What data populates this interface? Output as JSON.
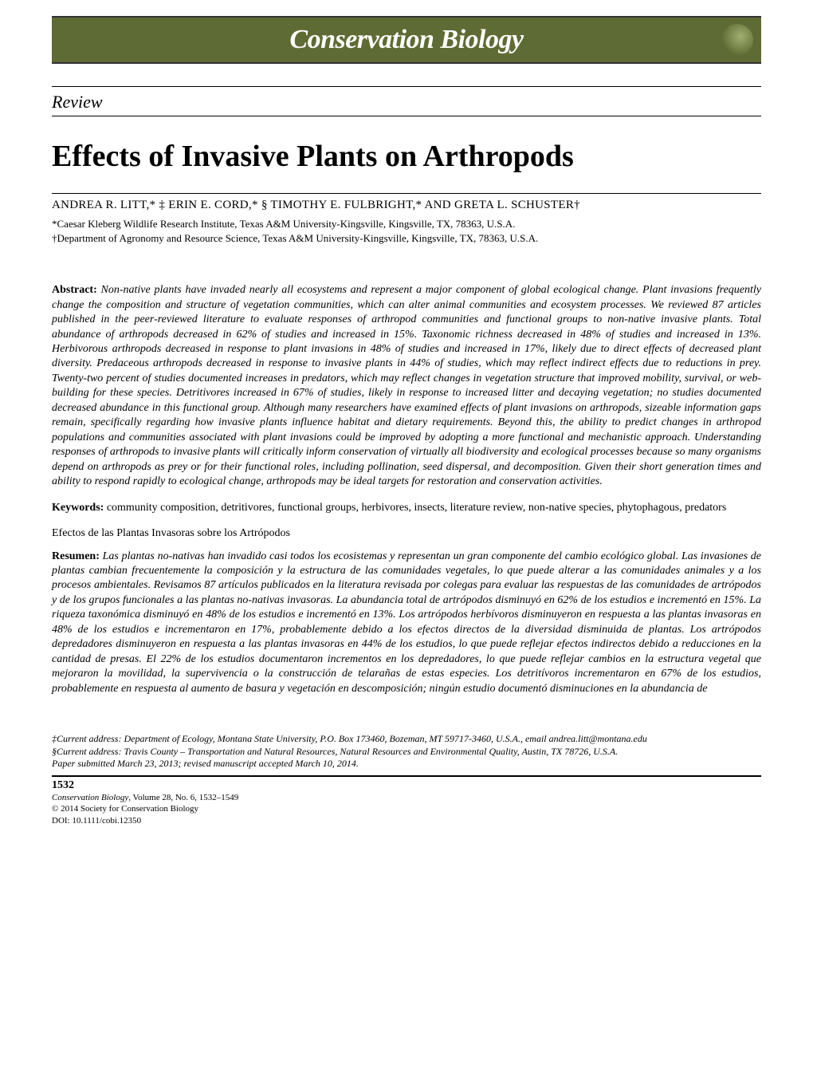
{
  "header": {
    "journal": "Conservation Biology",
    "band_color": "#5f6b34"
  },
  "article": {
    "section_type": "Review",
    "title": "Effects of Invasive Plants on Arthropods",
    "authors_line": "ANDREA R. LITT,* ‡ ERIN E. CORD,* § TIMOTHY E. FULBRIGHT,* AND GRETA L. SCHUSTER†",
    "affiliations": [
      "*Caesar Kleberg Wildlife Research Institute, Texas A&M University-Kingsville, Kingsville, TX, 78363, U.S.A.",
      "†Department of Agronomy and Resource Science, Texas A&M University-Kingsville, Kingsville, TX, 78363, U.S.A."
    ],
    "abstract_label": "Abstract:",
    "abstract": "Non-native plants have invaded nearly all ecosystems and represent a major component of global ecological change. Plant invasions frequently change the composition and structure of vegetation communities, which can alter animal communities and ecosystem processes. We reviewed 87 articles published in the peer-reviewed literature to evaluate responses of arthropod communities and functional groups to non-native invasive plants. Total abundance of arthropods decreased in 62% of studies and increased in 15%. Taxonomic richness decreased in 48% of studies and increased in 13%. Herbivorous arthropods decreased in response to plant invasions in 48% of studies and increased in 17%, likely due to direct effects of decreased plant diversity. Predaceous arthropods decreased in response to invasive plants in 44% of studies, which may reflect indirect effects due to reductions in prey. Twenty-two percent of studies documented increases in predators, which may reflect changes in vegetation structure that improved mobility, survival, or web-building for these species. Detritivores increased in 67% of studies, likely in response to increased litter and decaying vegetation; no studies documented decreased abundance in this functional group. Although many researchers have examined effects of plant invasions on arthropods, sizeable information gaps remain, specifically regarding how invasive plants influence habitat and dietary requirements. Beyond this, the ability to predict changes in arthropod populations and communities associated with plant invasions could be improved by adopting a more functional and mechanistic approach. Understanding responses of arthropods to invasive plants will critically inform conservation of virtually all biodiversity and ecological processes because so many organisms depend on arthropods as prey or for their functional roles, including pollination, seed dispersal, and decomposition. Given their short generation times and ability to respond rapidly to ecological change, arthropods may be ideal targets for restoration and conservation activities.",
    "keywords_label": "Keywords:",
    "keywords": "community composition, detritivores, functional groups, herbivores, insects, literature review, non-native species, phytophagous, predators",
    "spanish_title": "Efectos de las Plantas Invasoras sobre los Artrópodos",
    "resumen_label": "Resumen:",
    "resumen": "Las plantas no-nativas han invadido casi todos los ecosistemas y representan un gran componente del cambio ecológico global. Las invasiones de plantas cambian frecuentemente la composición y la estructura de las comunidades vegetales, lo que puede alterar a las comunidades animales y a los procesos ambientales. Revisamos 87 artículos publicados en la literatura revisada por colegas para evaluar las respuestas de las comunidades de artrópodos y de los grupos funcionales a las plantas no-nativas invasoras. La abundancia total de artrópodos disminuyó en 62% de los estudios e incrementó en 15%. La riqueza taxonómica disminuyó en 48% de los estudios e incrementó en 13%. Los artrópodos herbívoros disminuyeron en respuesta a las plantas invasoras en 48% de los estudios e incrementaron en 17%, probablemente debido a los efectos directos de la diversidad disminuida de plantas. Los artrópodos depredadores disminuyeron en respuesta a las plantas invasoras en 44% de los estudios, lo que puede reflejar efectos indirectos debido a reducciones en la cantidad de presas. El 22% de los estudios documentaron incrementos en los depredadores, lo que puede reflejar cambios en la estructura vegetal que mejoraron la movilidad, la supervivencia o la construcción de telarañas de estas especies. Los detritívoros incrementaron en 67% de los estudios, probablemente en respuesta al aumento de basura y vegetación en descomposición; ningún estudio documentó disminuciones en la abundancia de"
  },
  "footnotes": [
    "‡Current address: Department of Ecology, Montana State University, P.O. Box 173460, Bozeman, MT 59717-3460, U.S.A., email andrea.litt@montana.edu",
    "§Current address: Travis County – Transportation and Natural Resources, Natural Resources and Environmental Quality, Austin, TX 78726, U.S.A.",
    "Paper submitted March 23, 2013; revised manuscript accepted March 10, 2014."
  ],
  "footer": {
    "page_number": "1532",
    "journal_line": "Conservation Biology",
    "vol_line": ", Volume 28, No. 6, 1532–1549",
    "copyright": "© 2014 Society for Conservation Biology",
    "doi": "DOI: 10.1111/cobi.12350"
  }
}
